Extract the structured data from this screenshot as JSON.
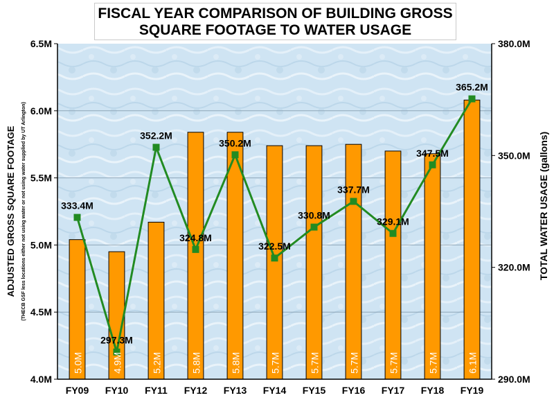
{
  "chart_data": {
    "type": "bar+line",
    "title_lines": [
      "FISCAL YEAR COMPARISON OF BUILDING GROSS",
      "SQUARE FOOTAGE TO WATER USAGE"
    ],
    "categories": [
      "FY09",
      "FY10",
      "FY11",
      "FY12",
      "FY13",
      "FY14",
      "FY15",
      "FY16",
      "FY17",
      "FY18",
      "FY19"
    ],
    "series": [
      {
        "name": "Adjusted Gross Square Footage",
        "type": "bar",
        "axis": "left",
        "color": "#ff9900",
        "values": [
          5.04,
          4.95,
          5.17,
          5.84,
          5.84,
          5.74,
          5.74,
          5.75,
          5.7,
          5.68,
          6.08
        ],
        "labels": [
          "5.0M",
          "4.9M",
          "5.2M",
          "5.8M",
          "5.8M",
          "5.7M",
          "5.7M",
          "5.7M",
          "5.7M",
          "5.7M",
          "6.1M"
        ]
      },
      {
        "name": "Total Water Usage",
        "type": "line",
        "axis": "right",
        "color": "#228b22",
        "values": [
          333.4,
          297.3,
          352.2,
          324.8,
          350.2,
          322.5,
          330.8,
          337.7,
          329.1,
          347.5,
          365.2
        ],
        "labels": [
          "333.4M",
          "297.3M",
          "352.2M",
          "324.8M",
          "350.2M",
          "322.5M",
          "330.8M",
          "337.7M",
          "329.1M",
          "347.5M",
          "365.2M"
        ]
      }
    ],
    "y_left": {
      "label": "ADJUSTED GROSS SQUARE FOOTAGE",
      "sublabel": "(THECB GSF less locations either not using water or not using water supplied by UT Arlington)",
      "ylim": [
        4.0,
        6.5
      ],
      "ticks": [
        4.0,
        4.5,
        5.0,
        5.5,
        6.0,
        6.5
      ],
      "tick_labels": [
        "4.0M",
        "4.5M",
        "5.0M",
        "5.5M",
        "6.0M",
        "6.5M"
      ]
    },
    "y_right": {
      "label": "TOTAL WATER USAGE (gallons)",
      "ylim": [
        290,
        380
      ],
      "ticks": [
        290,
        320,
        350,
        380
      ],
      "tick_labels": [
        "290.0M",
        "320.0M",
        "350.0M",
        "380.0M"
      ]
    },
    "grid": true,
    "colors": {
      "plot_bg": "#cfe4f3",
      "bar_fill": "#ff9900",
      "line": "#228b22",
      "grid": "#8ea6b8"
    }
  }
}
